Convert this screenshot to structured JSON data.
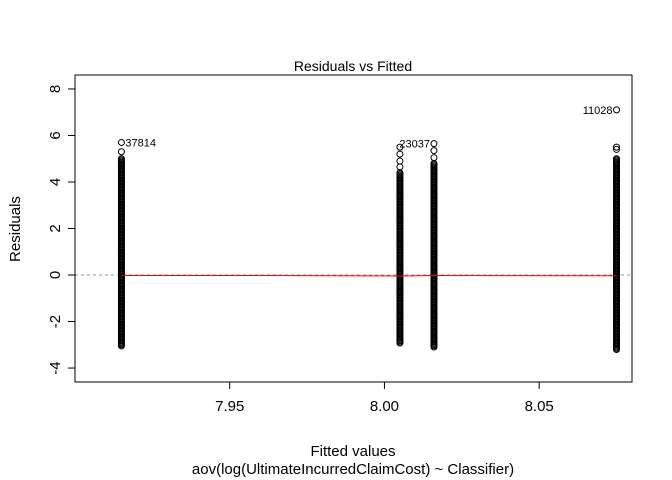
{
  "chart_data": {
    "type": "scatter",
    "title": "Residuals vs Fitted",
    "xlabel": "Fitted values",
    "subtitle": "aov(log(UltimateIncurredClaimCost) ~ Classifier)",
    "ylabel": "Residuals",
    "xlim": [
      7.9,
      8.08
    ],
    "ylim": [
      -4.6,
      8.6
    ],
    "x_ticks": [
      {
        "value": 7.95,
        "label": "7.95"
      },
      {
        "value": 8.0,
        "label": "8.00"
      },
      {
        "value": 8.05,
        "label": "8.05"
      }
    ],
    "y_ticks": [
      {
        "value": -4,
        "label": "-4"
      },
      {
        "value": -2,
        "label": "-2"
      },
      {
        "value": 0,
        "label": "0"
      },
      {
        "value": 2,
        "label": "2"
      },
      {
        "value": 4,
        "label": "4"
      },
      {
        "value": 6,
        "label": "6"
      },
      {
        "value": 8,
        "label": "8"
      }
    ],
    "groups": [
      {
        "fitted": 7.915,
        "min": -3.1,
        "max": 5.0,
        "outliers": [
          5.3,
          5.7
        ]
      },
      {
        "fitted": 8.005,
        "min": -2.95,
        "max": 4.4,
        "outliers": [
          4.65,
          4.9,
          5.2,
          5.5
        ]
      },
      {
        "fitted": 8.016,
        "min": -3.1,
        "max": 4.8,
        "outliers": [
          5.05,
          5.35,
          5.65
        ]
      },
      {
        "fitted": 8.075,
        "min": -3.25,
        "max": 5.0,
        "outliers": [
          5.4,
          5.5,
          7.1
        ]
      }
    ],
    "labeled_points": [
      {
        "label": "37814",
        "x": 7.915,
        "y": 5.7,
        "side": "right"
      },
      {
        "label": "23037",
        "x": 8.016,
        "y": 5.65,
        "side": "left"
      },
      {
        "label": "11028",
        "x": 8.075,
        "y": 7.1,
        "side": "left"
      }
    ],
    "smoother": [
      [
        7.915,
        -0.02
      ],
      [
        7.96,
        -0.02
      ],
      [
        8.005,
        -0.04
      ],
      [
        8.016,
        -0.02
      ],
      [
        8.075,
        -0.03
      ]
    ],
    "zero_line": 0,
    "colors": {
      "points": "#000000",
      "smoother": "#ff0000",
      "reference": "#999999"
    }
  }
}
